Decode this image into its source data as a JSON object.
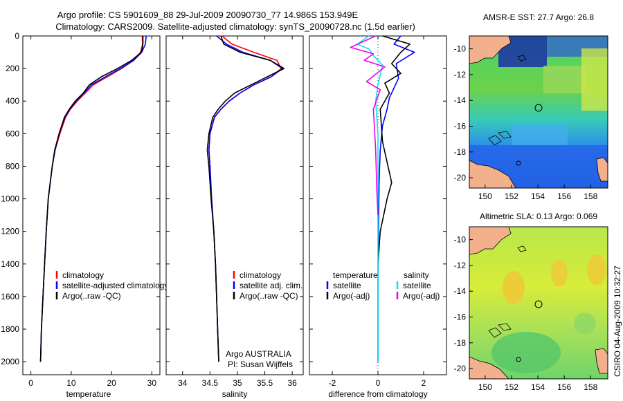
{
  "header": {
    "title_line1": "Argo profile: CS 5901609_88 29-Jul-2009 20090730_77 14.986S 153.949E",
    "title_line2": "Climatology: CARS2009. Satellite-adjusted climatology: synTS_20090728.nc (1.5d earlier)"
  },
  "colors": {
    "climatology": "#ff0000",
    "satellite": "#0000ff",
    "argo": "#000000",
    "salinity_satellite": "#00e5ee",
    "salinity_argo": "#ee00ee"
  },
  "chart_data": [
    {
      "type": "line",
      "name": "temperature-profile",
      "xlabel": "temperature",
      "ylabel": "",
      "xlim": [
        -2,
        32
      ],
      "ylim": [
        0,
        2080
      ],
      "y_reversed": true,
      "xticks": [
        "0",
        "10",
        "20",
        "30"
      ],
      "xtick_values": [
        0,
        10,
        20,
        30
      ],
      "yticks": [
        "0",
        "200",
        "400",
        "600",
        "800",
        "1000",
        "1200",
        "1400",
        "1600",
        "1800",
        "2000"
      ],
      "ytick_values": [
        0,
        200,
        400,
        600,
        800,
        1000,
        1200,
        1400,
        1600,
        1800,
        2000
      ],
      "legend": [
        "climatology",
        "satellite-adjusted climatology",
        "Argo(..raw -QC)"
      ],
      "series": [
        {
          "name": "climatology",
          "color": "#ff0000",
          "x": [
            27.6,
            27.7,
            27.2,
            25.5,
            22.5,
            19.0,
            15.5,
            13.5,
            11.5,
            9.8,
            8.6,
            7.2,
            6.0,
            5.3,
            4.8,
            4.3,
            3.8,
            3.4,
            3.0,
            2.6,
            2.4
          ],
          "y": [
            0,
            50,
            100,
            150,
            200,
            250,
            300,
            350,
            400,
            450,
            500,
            600,
            700,
            800,
            900,
            1000,
            1200,
            1400,
            1600,
            1800,
            2000
          ]
        },
        {
          "name": "satellite-adjusted climatology",
          "color": "#0000ff",
          "x": [
            28.6,
            28.4,
            27.5,
            25.5,
            22.2,
            18.5,
            15.0,
            13.2,
            11.2,
            9.6,
            8.4,
            7.0,
            6.0,
            5.3,
            4.8,
            4.3,
            3.8,
            3.4,
            3.0,
            2.6,
            2.4
          ],
          "y": [
            0,
            50,
            100,
            150,
            200,
            250,
            300,
            350,
            400,
            450,
            500,
            600,
            700,
            800,
            900,
            1000,
            1200,
            1400,
            1600,
            1800,
            2000
          ]
        },
        {
          "name": "Argo(..raw -QC)",
          "color": "#000000",
          "x": [
            27.8,
            27.8,
            27.4,
            25.0,
            21.5,
            17.5,
            14.5,
            13.0,
            11.0,
            9.5,
            8.3,
            7.0,
            5.9,
            5.3,
            4.8,
            4.3,
            3.8,
            3.4,
            3.0,
            2.6,
            2.4
          ],
          "y": [
            0,
            50,
            100,
            150,
            200,
            250,
            300,
            350,
            400,
            450,
            500,
            600,
            700,
            800,
            900,
            1000,
            1200,
            1400,
            1600,
            1800,
            2000
          ]
        }
      ]
    },
    {
      "type": "line",
      "name": "salinity-profile",
      "xlabel": "salinity",
      "xlim": [
        33.7,
        36.2
      ],
      "ylim": [
        0,
        2080
      ],
      "y_reversed": true,
      "xticks": [
        "34",
        "34.5",
        "35",
        "35.5",
        "36"
      ],
      "xtick_values": [
        34,
        34.5,
        35,
        35.5,
        36
      ],
      "legend": [
        "climatology",
        "satellite adj. clim.",
        "Argo(..raw -QC)"
      ],
      "series": [
        {
          "name": "climatology",
          "color": "#ff0000",
          "x": [
            34.72,
            34.9,
            35.3,
            35.72,
            35.8,
            35.62,
            35.3,
            35.05,
            34.85,
            34.7,
            34.58,
            34.5,
            34.48,
            34.5,
            34.53,
            34.57,
            34.6,
            34.62,
            34.64,
            34.66
          ],
          "y": [
            0,
            50,
            100,
            150,
            200,
            250,
            300,
            350,
            400,
            450,
            500,
            600,
            700,
            800,
            1000,
            1200,
            1400,
            1600,
            1800,
            2000
          ]
        },
        {
          "name": "satellite adj. clim.",
          "color": "#0000ff",
          "x": [
            34.62,
            34.8,
            35.1,
            35.6,
            35.82,
            35.62,
            35.3,
            35.05,
            34.85,
            34.7,
            34.58,
            34.5,
            34.48,
            34.5,
            34.53,
            34.57,
            34.6,
            34.62,
            34.64,
            34.66
          ],
          "y": [
            0,
            50,
            100,
            150,
            200,
            250,
            300,
            350,
            400,
            450,
            500,
            600,
            700,
            800,
            1000,
            1200,
            1400,
            1600,
            1800,
            2000
          ]
        },
        {
          "name": "Argo(..raw -QC)",
          "color": "#000000",
          "x": [
            34.7,
            34.75,
            35.05,
            35.6,
            35.85,
            35.55,
            35.25,
            34.95,
            34.78,
            34.65,
            34.55,
            34.48,
            34.45,
            34.48,
            34.52,
            34.57,
            34.6,
            34.62,
            34.64,
            34.66
          ],
          "y": [
            0,
            50,
            100,
            150,
            200,
            250,
            300,
            350,
            400,
            450,
            500,
            600,
            700,
            800,
            1000,
            1200,
            1400,
            1600,
            1800,
            2000
          ]
        }
      ],
      "annotation": [
        "Argo AUSTRALIA",
        "PI: Susan Wijffels"
      ]
    },
    {
      "type": "line",
      "name": "difference-profile",
      "xlabel": "difference from climatology",
      "xlim": [
        -3,
        3
      ],
      "ylim": [
        0,
        2080
      ],
      "y_reversed": true,
      "xticks": [
        "-2",
        "0",
        "2"
      ],
      "xtick_values": [
        -2,
        0,
        2
      ],
      "legend_groups": [
        "temperature",
        "salinity"
      ],
      "legend": [
        "satellite",
        "Argo(-adj)",
        "satellite",
        "Argo(-adj)"
      ],
      "series": [
        {
          "name": "temperature satellite",
          "color": "#0000ff",
          "x": [
            1.0,
            0.7,
            1.6,
            0.8,
            0.9,
            0.5,
            0.4,
            0.2,
            0.1,
            0.05,
            0.0,
            0.0
          ],
          "y": [
            0,
            50,
            100,
            170,
            260,
            380,
            450,
            550,
            700,
            900,
            1500,
            2000
          ]
        },
        {
          "name": "temperature Argo(-adj)",
          "color": "#000000",
          "x": [
            0.2,
            1.4,
            1.0,
            0.6,
            1.0,
            0.3,
            0.5,
            0.1,
            0.2,
            0.6,
            0.4,
            0.1,
            0.0
          ],
          "y": [
            0,
            50,
            100,
            170,
            230,
            290,
            350,
            450,
            650,
            900,
            1000,
            1200,
            1400
          ]
        },
        {
          "name": "salinity satellite",
          "color": "#00e5ee",
          "x": [
            -0.4,
            -0.9,
            -0.4,
            -0.2,
            0.2,
            0.0,
            -0.1,
            0.0,
            0.0,
            0.0
          ],
          "y": [
            0,
            50,
            80,
            120,
            180,
            300,
            400,
            600,
            1200,
            2000
          ]
        },
        {
          "name": "salinity Argo(-adj)",
          "color": "#ee00ee",
          "x": [
            -0.1,
            -1.2,
            -0.2,
            -0.6,
            0.3,
            -0.5,
            0.1,
            -0.2,
            -0.1,
            -0.05,
            0.0
          ],
          "y": [
            0,
            70,
            110,
            150,
            190,
            280,
            330,
            450,
            700,
            950,
            1100
          ]
        }
      ]
    }
  ],
  "maps": [
    {
      "name": "sst-map",
      "title": "AMSR-E SST: 27.7 Argo: 26.8",
      "xticks": [
        "150",
        "152",
        "154",
        "156",
        "158"
      ],
      "yticks": [
        "-10",
        "-12",
        "-14",
        "-16",
        "-18",
        "-20"
      ],
      "float_lon": 153.949,
      "float_lat": -14.986
    },
    {
      "name": "sla-map",
      "title": "Altimetric SLA: 0.13 Argo: 0.069",
      "xticks": [
        "150",
        "152",
        "154",
        "156",
        "158"
      ],
      "yticks": [
        "-10",
        "-12",
        "-14",
        "-16",
        "-18",
        "-20"
      ],
      "float_lon": 153.949,
      "float_lat": -14.986
    }
  ],
  "footer": {
    "credit": "CSIRO 04-Aug-2009 10:32:27"
  }
}
